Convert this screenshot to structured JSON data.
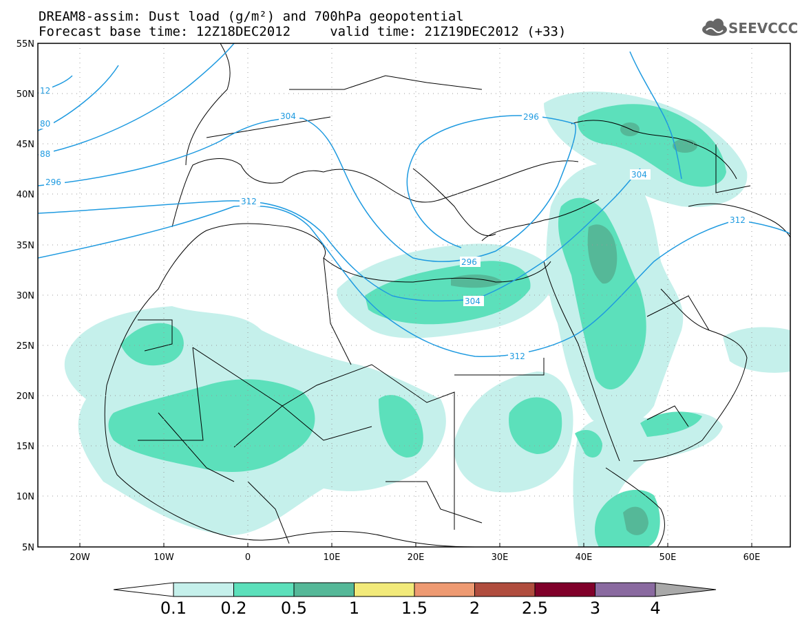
{
  "header": {
    "title_line1": "DREAM8-assim: Dust load (g/m²) and 700hPa geopotential",
    "title_line2": "Forecast base time: 12Z18DEC2012     valid time: 21Z19DEC2012 (+33)",
    "logo_text": "SEEVCCC"
  },
  "map": {
    "lat_labels": [
      "55N",
      "50N",
      "45N",
      "40N",
      "35N",
      "30N",
      "25N",
      "20N",
      "15N",
      "10N",
      "5N"
    ],
    "lon_labels": [
      "20W",
      "10W",
      "0",
      "10E",
      "20E",
      "30E",
      "40E",
      "50E",
      "60E"
    ],
    "contour_labels": [
      "12",
      "80",
      "88",
      "296",
      "304",
      "296",
      "304",
      "312",
      "304",
      "312",
      "296",
      "312"
    ],
    "contour_color": "#1e9ae0"
  },
  "colorbar": {
    "ticks": [
      "0.1",
      "0.2",
      "0.5",
      "1",
      "1.5",
      "2",
      "2.5",
      "3",
      "4"
    ],
    "colors": [
      "#c5f0eb",
      "#5ce0bb",
      "#55b898",
      "#f2ea7a",
      "#ee9a72",
      "#b04d3e",
      "#80002a",
      "#8a6aa0"
    ]
  }
}
